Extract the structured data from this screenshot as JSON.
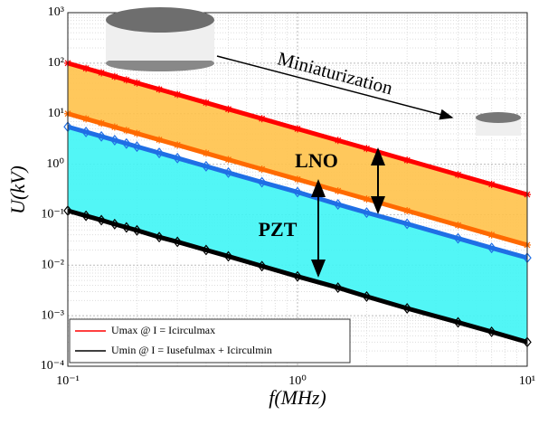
{
  "chart_data": {
    "type": "line",
    "xlabel": "f(MHz)",
    "ylabel": "U(kV)",
    "log_x": true,
    "log_y": true,
    "grid": true,
    "xlim": [
      0.1,
      10
    ],
    "ylim": [
      0.0001,
      1000
    ],
    "xticks": [
      {
        "value": 0.1,
        "label": "10⁻¹"
      },
      {
        "value": 1,
        "label": "10⁰"
      },
      {
        "value": 10,
        "label": "10¹"
      }
    ],
    "yticks": [
      {
        "value": 0.0001,
        "label": "10⁻⁴"
      },
      {
        "value": 0.001,
        "label": "10⁻³"
      },
      {
        "value": 0.01,
        "label": "10⁻²"
      },
      {
        "value": 0.1,
        "label": "10⁻¹"
      },
      {
        "value": 1,
        "label": "10⁰"
      },
      {
        "value": 10,
        "label": "10¹"
      },
      {
        "value": 100,
        "label": "10²"
      },
      {
        "value": 1000,
        "label": "10³"
      }
    ],
    "x": [
      0.1,
      0.12,
      0.14,
      0.16,
      0.18,
      0.2,
      0.25,
      0.3,
      0.4,
      0.5,
      0.7,
      1,
      1.5,
      2,
      3,
      5,
      7,
      10
    ],
    "series": [
      {
        "name": "Umax @ I = Icirculmax",
        "color": "#ff0000",
        "marker": "star",
        "fill": "#ffc24a",
        "values": [
          100,
          78.9,
          64.6,
          54.3,
          46.6,
          40.6,
          30.4,
          24,
          16.5,
          12.3,
          7.96,
          5.01,
          2.96,
          2.04,
          1.2,
          0.618,
          0.399,
          0.251
        ]
      },
      {
        "color": "#ff6a00",
        "marker": "star",
        "values": [
          10,
          7.89,
          6.46,
          5.43,
          4.66,
          4.06,
          3.04,
          2.4,
          1.65,
          1.23,
          0.796,
          0.501,
          0.296,
          0.204,
          0.12,
          0.0618,
          0.0399,
          0.0251
        ]
      },
      {
        "color": "#1f6fe5",
        "marker": "diamond",
        "fill": "#3ff5f5",
        "values": [
          5.5,
          4.34,
          3.55,
          2.99,
          2.56,
          2.23,
          1.67,
          1.32,
          0.91,
          0.68,
          0.44,
          0.28,
          0.16,
          0.11,
          0.066,
          0.034,
          0.022,
          0.014
        ]
      },
      {
        "name": "Umin @ I = Iusefulmax + Icirculmin",
        "color": "#000000",
        "marker": "diamond",
        "values": [
          0.12,
          0.095,
          0.078,
          0.065,
          0.056,
          0.049,
          0.036,
          0.029,
          0.02,
          0.015,
          0.0096,
          0.006,
          0.0036,
          0.0024,
          0.0014,
          0.00074,
          0.00048,
          0.0003
        ]
      }
    ],
    "annotations": [
      "LNO",
      "PZT",
      "Miniaturization"
    ],
    "legend": "lower left"
  }
}
